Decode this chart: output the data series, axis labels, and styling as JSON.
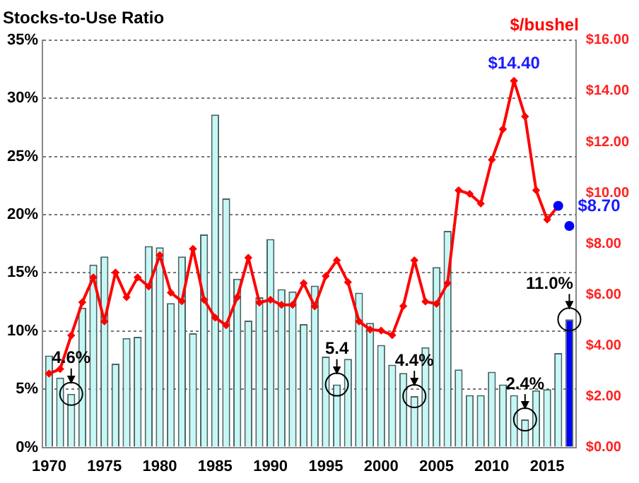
{
  "chart_data": {
    "type": "bar",
    "title": "Stocks-to-Use Ratio",
    "y2label": "$/bushel",
    "x": [
      1970,
      1971,
      1972,
      1973,
      1974,
      1975,
      1976,
      1977,
      1978,
      1979,
      1980,
      1981,
      1982,
      1983,
      1984,
      1985,
      1986,
      1987,
      1988,
      1989,
      1990,
      1991,
      1992,
      1993,
      1994,
      1995,
      1996,
      1997,
      1998,
      1999,
      2000,
      2001,
      2002,
      2003,
      2004,
      2005,
      2006,
      2007,
      2008,
      2009,
      2010,
      2011,
      2012,
      2013,
      2014,
      2015,
      2016,
      2017
    ],
    "series": [
      {
        "colors": [
          "#c6f7f5",
          "#c6f7f5",
          "#c6f7f5",
          "#c6f7f5",
          "#c6f7f5",
          "#c6f7f5",
          "#c6f7f5",
          "#c6f7f5",
          "#c6f7f5",
          "#c6f7f5",
          "#c6f7f5",
          "#c6f7f5",
          "#c6f7f5",
          "#c6f7f5",
          "#c6f7f5",
          "#c6f7f5",
          "#c6f7f5",
          "#c6f7f5",
          "#c6f7f5",
          "#c6f7f5",
          "#c6f7f5",
          "#c6f7f5",
          "#c6f7f5",
          "#c6f7f5",
          "#c6f7f5",
          "#c6f7f5",
          "#c6f7f5",
          "#c6f7f5",
          "#c6f7f5",
          "#c6f7f5",
          "#c6f7f5",
          "#c6f7f5",
          "#c6f7f5",
          "#c6f7f5",
          "#c6f7f5",
          "#c6f7f5",
          "#c6f7f5",
          "#c6f7f5",
          "#c6f7f5",
          "#c6f7f5",
          "#c6f7f5",
          "#c6f7f5",
          "#c6f7f5",
          "#c6f7f5",
          "#c6f7f5",
          "#c6f7f5",
          "#c6f7f5",
          "#0000ff"
        ],
        "values": [
          7.9,
          6.0,
          4.6,
          12.0,
          15.7,
          16.4,
          7.2,
          9.4,
          9.5,
          17.3,
          17.2,
          12.4,
          16.4,
          9.8,
          18.3,
          28.6,
          21.4,
          14.5,
          10.9,
          12.9,
          17.9,
          13.6,
          13.4,
          10.6,
          13.9,
          7.8,
          5.4,
          7.6,
          13.3,
          10.7,
          8.8,
          7.1,
          6.4,
          4.4,
          8.6,
          15.5,
          18.6,
          6.7,
          4.5,
          4.5,
          6.5,
          5.4,
          4.5,
          2.4,
          4.9,
          5.0,
          8.1,
          11.0
        ],
        "value_labels": [
          null,
          null,
          "4.6%",
          null,
          null,
          null,
          null,
          null,
          null,
          null,
          null,
          null,
          null,
          null,
          null,
          null,
          null,
          null,
          null,
          null,
          null,
          null,
          null,
          null,
          null,
          null,
          "5.4",
          null,
          null,
          null,
          null,
          null,
          null,
          "4.4%",
          null,
          null,
          null,
          null,
          null,
          null,
          null,
          null,
          null,
          "2.4%",
          null,
          null,
          null,
          "11.0%"
        ]
      },
      {
        "type": "line",
        "axis": "y2",
        "color": "#ff0000",
        "marker": "diamond",
        "x": [
          1970,
          1971,
          1972,
          1973,
          1974,
          1975,
          1976,
          1977,
          1978,
          1979,
          1980,
          1981,
          1982,
          1983,
          1984,
          1985,
          1986,
          1987,
          1988,
          1989,
          1990,
          1991,
          1992,
          1993,
          1994,
          1995,
          1996,
          1997,
          1998,
          1999,
          2000,
          2001,
          2002,
          2003,
          2004,
          2005,
          2006,
          2007,
          2008,
          2009,
          2010,
          2011,
          2012,
          2013,
          2014,
          2015,
          2016
        ],
        "values": [
          2.9,
          3.08,
          4.4,
          5.7,
          6.68,
          4.95,
          6.87,
          5.9,
          6.68,
          6.32,
          7.55,
          6.08,
          5.74,
          7.8,
          5.8,
          5.1,
          4.8,
          5.9,
          7.45,
          5.69,
          5.8,
          5.6,
          5.6,
          6.45,
          5.54,
          6.73,
          7.35,
          6.49,
          4.95,
          4.63,
          4.59,
          4.41,
          5.55,
          7.35,
          5.73,
          5.64,
          6.45,
          10.1,
          9.96,
          9.58,
          11.3,
          12.5,
          14.4,
          13.0,
          10.1,
          8.95,
          9.49
        ],
        "value_labels": [
          null,
          null,
          null,
          null,
          null,
          null,
          null,
          null,
          null,
          null,
          null,
          null,
          null,
          null,
          null,
          null,
          null,
          null,
          null,
          null,
          null,
          null,
          null,
          null,
          null,
          null,
          null,
          null,
          null,
          null,
          null,
          null,
          null,
          null,
          null,
          null,
          null,
          null,
          null,
          null,
          null,
          null,
          "$14.40",
          null,
          null,
          null,
          null
        ]
      },
      {
        "type": "scatter",
        "axis": "y2",
        "color": "#0000ff",
        "marker": "circle",
        "x": [
          2016,
          2017
        ],
        "values": [
          9.49,
          8.7
        ],
        "value_labels": [
          null,
          "$8.70"
        ]
      }
    ],
    "xlim": [
      1969.4,
      2017.6
    ],
    "xticks": [
      1970,
      1975,
      1980,
      1985,
      1990,
      1995,
      2000,
      2005,
      2010,
      2015
    ],
    "ylim": [
      0,
      35
    ],
    "yticks": [
      {
        "value": 0,
        "label": "0%"
      },
      {
        "value": 5,
        "label": "5%"
      },
      {
        "value": 10,
        "label": "10%"
      },
      {
        "value": 15,
        "label": "15%"
      },
      {
        "value": 20,
        "label": "20%"
      },
      {
        "value": 25,
        "label": "25%"
      },
      {
        "value": 30,
        "label": "30%"
      },
      {
        "value": 35,
        "label": "35%"
      }
    ],
    "y2lim": [
      0,
      16
    ],
    "y2ticks": [
      {
        "value": 0,
        "label": "$0.00"
      },
      {
        "value": 2,
        "label": "$2.00"
      },
      {
        "value": 4,
        "label": "$4.00"
      },
      {
        "value": 6,
        "label": "$6.00"
      },
      {
        "value": 8,
        "label": "$8.00"
      },
      {
        "value": 10,
        "label": "$10.00"
      },
      {
        "value": 12,
        "label": "$12.00"
      },
      {
        "value": 14,
        "label": "$14.00"
      },
      {
        "value": 16,
        "label": "$16.00"
      }
    ],
    "grid": "y",
    "legend": false
  }
}
